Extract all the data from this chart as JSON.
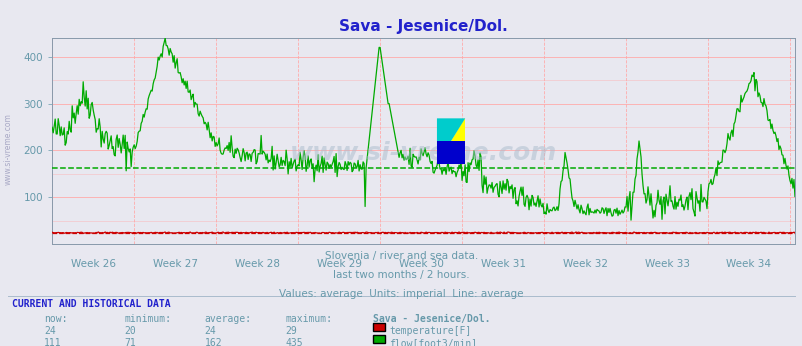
{
  "title": "Sava - Jesenice/Dol.",
  "subtitle_lines": [
    "Slovenia / river and sea data.",
    "last two months / 2 hours.",
    "Values: average  Units: imperial  Line: average"
  ],
  "current_historical_header": "CURRENT AND HISTORICAL DATA",
  "table_headers": [
    "now:",
    "minimum:",
    "average:",
    "maximum:",
    "Sava - Jesenice/Dol."
  ],
  "temp_row": [
    "24",
    "20",
    "24",
    "29"
  ],
  "flow_row": [
    "111",
    "71",
    "162",
    "435"
  ],
  "temp_label": "temperature[F]",
  "flow_label": "flow[foot3/min]",
  "temp_color": "#cc0000",
  "flow_color": "#00aa00",
  "avg_flow": 162,
  "avg_temp": 24,
  "ylim": [
    0,
    440
  ],
  "yticks": [
    100,
    200,
    300,
    400
  ],
  "week_labels": [
    "Week 26",
    "Week 27",
    "Week 28",
    "Week 29",
    "Week 30",
    "Week 31",
    "Week 32",
    "Week 33",
    "Week 34"
  ],
  "bg_color": "#e8e8f0",
  "grid_color": "#ffaaaa",
  "title_color": "#2222cc",
  "axis_label_color": "#6699aa",
  "watermark": "www.si-vreme.com",
  "watermark_color": "#aabbcc",
  "left_watermark": "www.si-vreme.com",
  "n_points": 744
}
